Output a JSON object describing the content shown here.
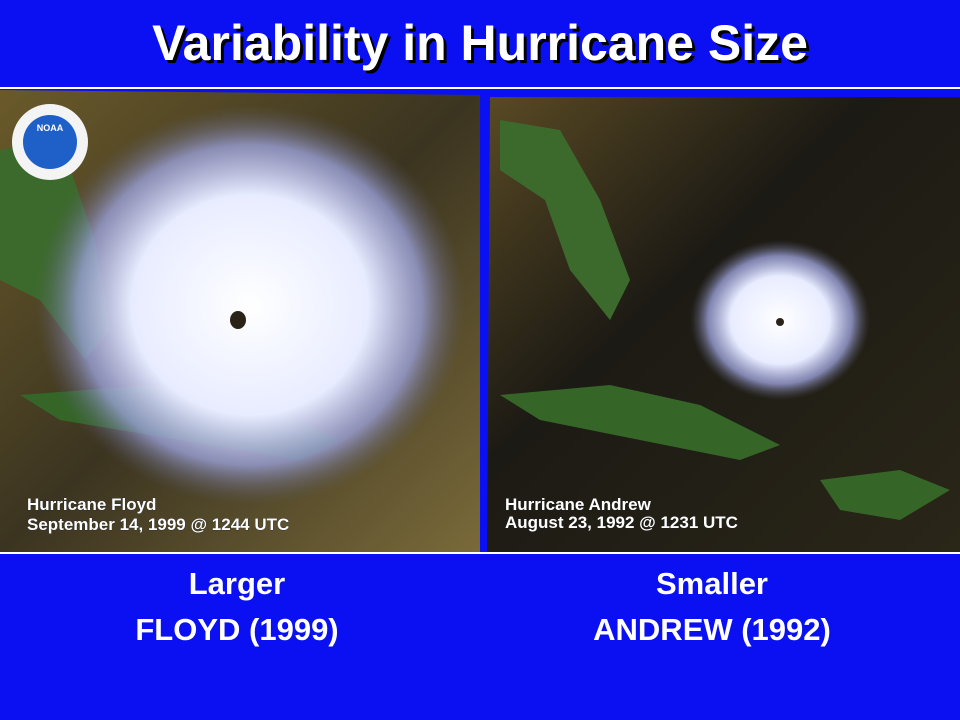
{
  "header": {
    "title": "Variability in Hurricane Size"
  },
  "panels": [
    {
      "logo": "NOAA",
      "image_caption": [
        "Hurricane Floyd",
        "September 14, 1999 @ 1244 UTC"
      ],
      "label": [
        "Larger",
        "FLOYD (1999)"
      ]
    },
    {
      "image_caption": [
        "Hurricane Andrew",
        "August 23, 1992 @ 1231 UTC"
      ],
      "label": [
        "Smaller",
        "ANDREW (1992)"
      ]
    }
  ]
}
